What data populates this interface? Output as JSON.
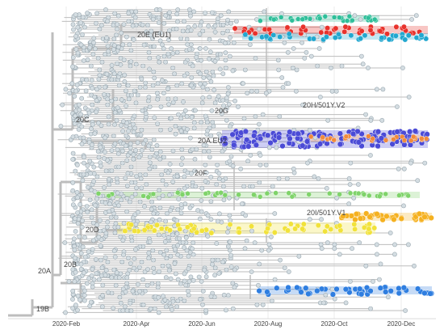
{
  "figure": {
    "x_axis": {
      "type": "date",
      "ticks": [
        "2020-Feb",
        "2020-Apr",
        "2020-Jun",
        "2020-Aug",
        "2020-Oct",
        "2020-Dec"
      ]
    },
    "clade_labels": [
      "20E (EU1)",
      "20G",
      "20H/501Y.V2",
      "20C",
      "20A.EU2",
      "20F",
      "20I/501Y.V1",
      "20D",
      "20B",
      "20A",
      "19B"
    ],
    "colors": {
      "branch": "#bdbdbd",
      "tip_default": "#d4dde2",
      "tip_outline": "#9aa8b0",
      "teal": "#2fbf9a",
      "red": "#e8322c",
      "cyan": "#22a7cf",
      "blue_violet": "#4b4bd6",
      "orange": "#f08a3c",
      "green": "#7fd36a",
      "amber": "#f5b120",
      "yellow": "#f1e23a",
      "blue": "#2f7ee0"
    }
  }
}
